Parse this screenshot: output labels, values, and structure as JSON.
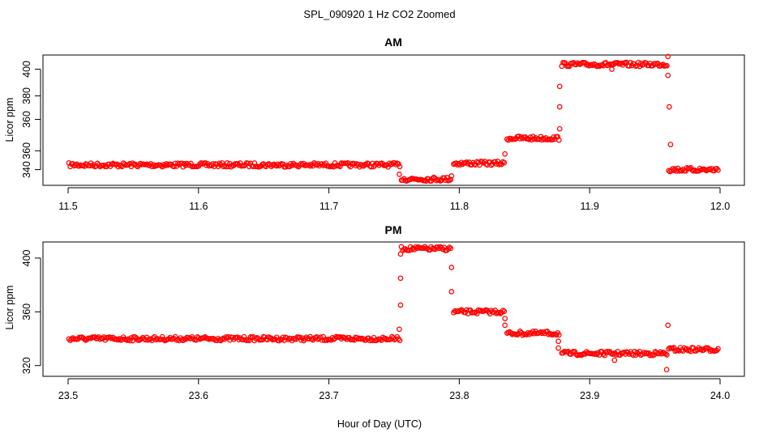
{
  "title": "SPL_090920  1 Hz CO2 Zoomed",
  "xlabel": "Hour of Day (UTC)",
  "point_color": "#ff0000",
  "chart_data": [
    {
      "type": "scatter",
      "title": "AM",
      "ylabel": "Licor ppm",
      "xlim": [
        11.5,
        12.0
      ],
      "ylim": [
        330,
        413
      ],
      "xticks": [
        "11.5",
        "11.6",
        "11.7",
        "11.8",
        "11.9",
        "12.0"
      ],
      "yticks": [
        "340",
        "360",
        "360",
        "380",
        "400"
      ],
      "grid": false,
      "series": [
        {
          "segments": [
            {
              "x": [
                11.5,
                11.755
              ],
              "y": 343
            },
            {
              "x": [
                11.755,
                11.795
              ],
              "y": 334
            },
            {
              "x": [
                11.795,
                11.836
              ],
              "y": 344
            },
            {
              "x": [
                11.836,
                11.878
              ],
              "y": 360
            },
            {
              "x": [
                11.878,
                11.96
              ],
              "y": 407
            },
            {
              "x": [
                11.96,
                12.0
              ],
              "y": 340
            }
          ],
          "outliers": [
            {
              "x": 11.754,
              "y": 337
            },
            {
              "x": 11.794,
              "y": 336
            },
            {
              "x": 11.835,
              "y": 350
            },
            {
              "x": 11.877,
              "y": 366
            },
            {
              "x": 11.877,
              "y": 380
            },
            {
              "x": 11.877,
              "y": 393
            },
            {
              "x": 11.917,
              "y": 404
            },
            {
              "x": 11.96,
              "y": 412
            },
            {
              "x": 11.96,
              "y": 400
            },
            {
              "x": 11.961,
              "y": 380
            },
            {
              "x": 11.962,
              "y": 356
            }
          ]
        }
      ]
    },
    {
      "type": "scatter",
      "title": "PM",
      "ylabel": "Licor ppm",
      "xlim": [
        23.5,
        24.0
      ],
      "ylim": [
        312,
        412
      ],
      "xticks": [
        "23.5",
        "23.6",
        "23.7",
        "23.8",
        "23.9",
        "24.0"
      ],
      "yticks": [
        "320",
        "360",
        "400"
      ],
      "grid": false,
      "series": [
        {
          "segments": [
            {
              "x": [
                23.5,
                23.755
              ],
              "y": 340
            },
            {
              "x": [
                23.755,
                23.795
              ],
              "y": 407
            },
            {
              "x": [
                23.795,
                23.836
              ],
              "y": 360
            },
            {
              "x": [
                23.836,
                23.878
              ],
              "y": 344
            },
            {
              "x": [
                23.878,
                23.96
              ],
              "y": 329
            },
            {
              "x": [
                23.96,
                24.0
              ],
              "y": 332
            }
          ],
          "outliers": [
            {
              "x": 23.754,
              "y": 347
            },
            {
              "x": 23.755,
              "y": 365
            },
            {
              "x": 23.755,
              "y": 385
            },
            {
              "x": 23.755,
              "y": 403
            },
            {
              "x": 23.794,
              "y": 375
            },
            {
              "x": 23.794,
              "y": 393
            },
            {
              "x": 23.835,
              "y": 350
            },
            {
              "x": 23.835,
              "y": 355
            },
            {
              "x": 23.876,
              "y": 333
            },
            {
              "x": 23.876,
              "y": 338
            },
            {
              "x": 23.96,
              "y": 350
            },
            {
              "x": 23.959,
              "y": 317
            },
            {
              "x": 23.919,
              "y": 324
            }
          ]
        }
      ]
    }
  ]
}
